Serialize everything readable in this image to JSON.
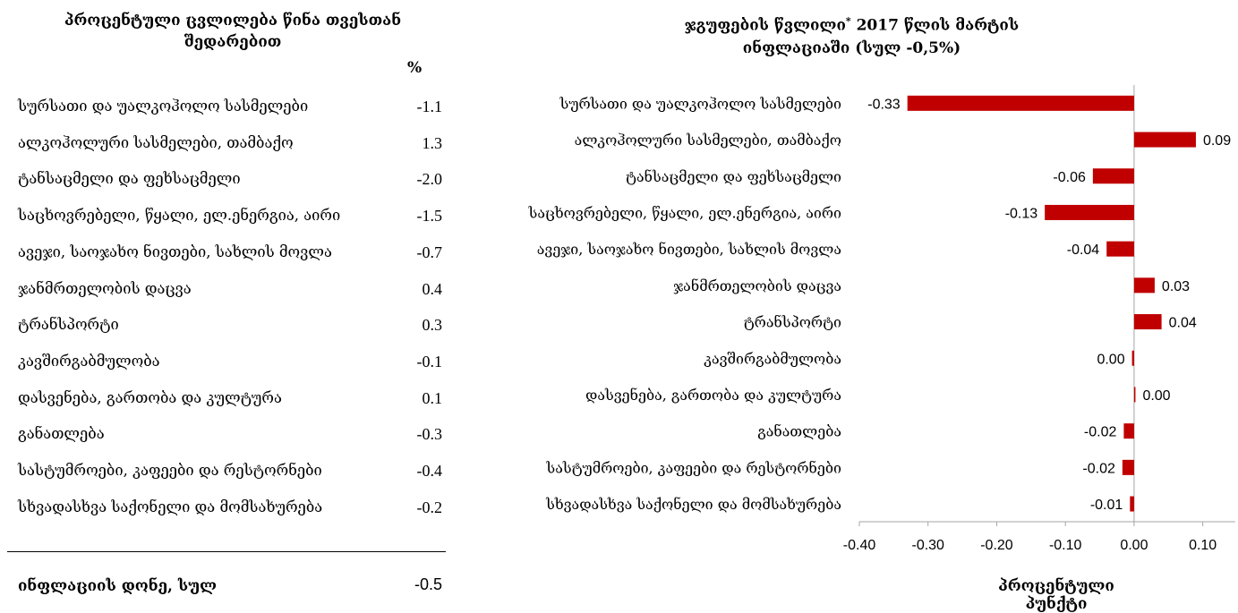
{
  "left_table": {
    "title_line1": "პროცენტული ცვლილება წინა თვესთან",
    "title_line2": "შედარებით",
    "unit": "%",
    "rows": [
      {
        "label": "სურსათი და უალკოჰოლო სასმელები",
        "value": "-1.1"
      },
      {
        "label": "ალკოჰოლური სასმელები, თამბაქო",
        "value": "1.3"
      },
      {
        "label": "ტანსაცმელი და ფეხსაცმელი",
        "value": "-2.0"
      },
      {
        "label": "საცხოვრებელი, წყალი, ელ.ენერგია, აირი",
        "value": "-1.5"
      },
      {
        "label": "ავეჯი, საოჯახო ნივთები, სახლის მოვლა",
        "value": "-0.7"
      },
      {
        "label": "ჯანმრთელობის დაცვა",
        "value": "0.4"
      },
      {
        "label": "ტრანსპორტი",
        "value": "0.3"
      },
      {
        "label": "კავშირგაბმულობა",
        "value": "-0.1"
      },
      {
        "label": "დასვენება, გართობა და კულტურა",
        "value": "0.1"
      },
      {
        "label": "განათლება",
        "value": "-0.3"
      },
      {
        "label": "სასტუმროები, კაფეები და რესტორნები",
        "value": "-0.4"
      },
      {
        "label": "სხვადასხვა საქონელი და მომსახურება",
        "value": "-0.2"
      }
    ],
    "total": {
      "label": "ინფლაციის დონე, სულ",
      "value": "-0.5"
    }
  },
  "chart_data": {
    "type": "bar",
    "orientation": "horizontal",
    "title_line1_prefix": "ჯგუფების წვლილი",
    "title_superscript": "*",
    "title_line1_suffix": " 2017 წლის მარტის",
    "title_line2": "ინფლაციაში (სულ -0,5%)",
    "xlabel": "პროცენტული პუნქტი",
    "xlim": [
      -0.4,
      0.15
    ],
    "xticks": [
      "-0.40",
      "-0.30",
      "-0.20",
      "-0.10",
      "0.00",
      "0.10"
    ],
    "tick_values": [
      -0.4,
      -0.3,
      -0.2,
      -0.1,
      0.0,
      0.1
    ],
    "bar_color": "#c00000",
    "categories": [
      "სურსათი და უალკოჰოლო სასმელები",
      "ალკოჰოლური  სასმელები, თამბაქო",
      "ტანსაცმელი და ფეხსაცმელი",
      "საცხოვრებელი, წყალი, ელ.ენერგია, აირი",
      "ავეჯი, საოჯახო ნივთები, სახლის მოვლა",
      "ჯანმრთელობის დაცვა",
      "ტრანსპორტი",
      "კავშირგაბმულობა",
      "დასვენება, გართობა და კულტურა",
      "განათლება",
      "სასტუმროები, კაფეები და რესტორნები",
      "სხვადასხვა საქონელი და მომსახურება"
    ],
    "values": [
      -0.33,
      0.09,
      -0.06,
      -0.13,
      -0.04,
      0.03,
      0.04,
      -0.003,
      0.002,
      -0.015,
      -0.017,
      -0.006
    ],
    "data_labels": [
      "-0.33",
      "0.09",
      "-0.06",
      "-0.13",
      "-0.04",
      "0.03",
      "0.04",
      "0.00",
      "0.00",
      "-0.02",
      "-0.02",
      "-0.01"
    ]
  }
}
